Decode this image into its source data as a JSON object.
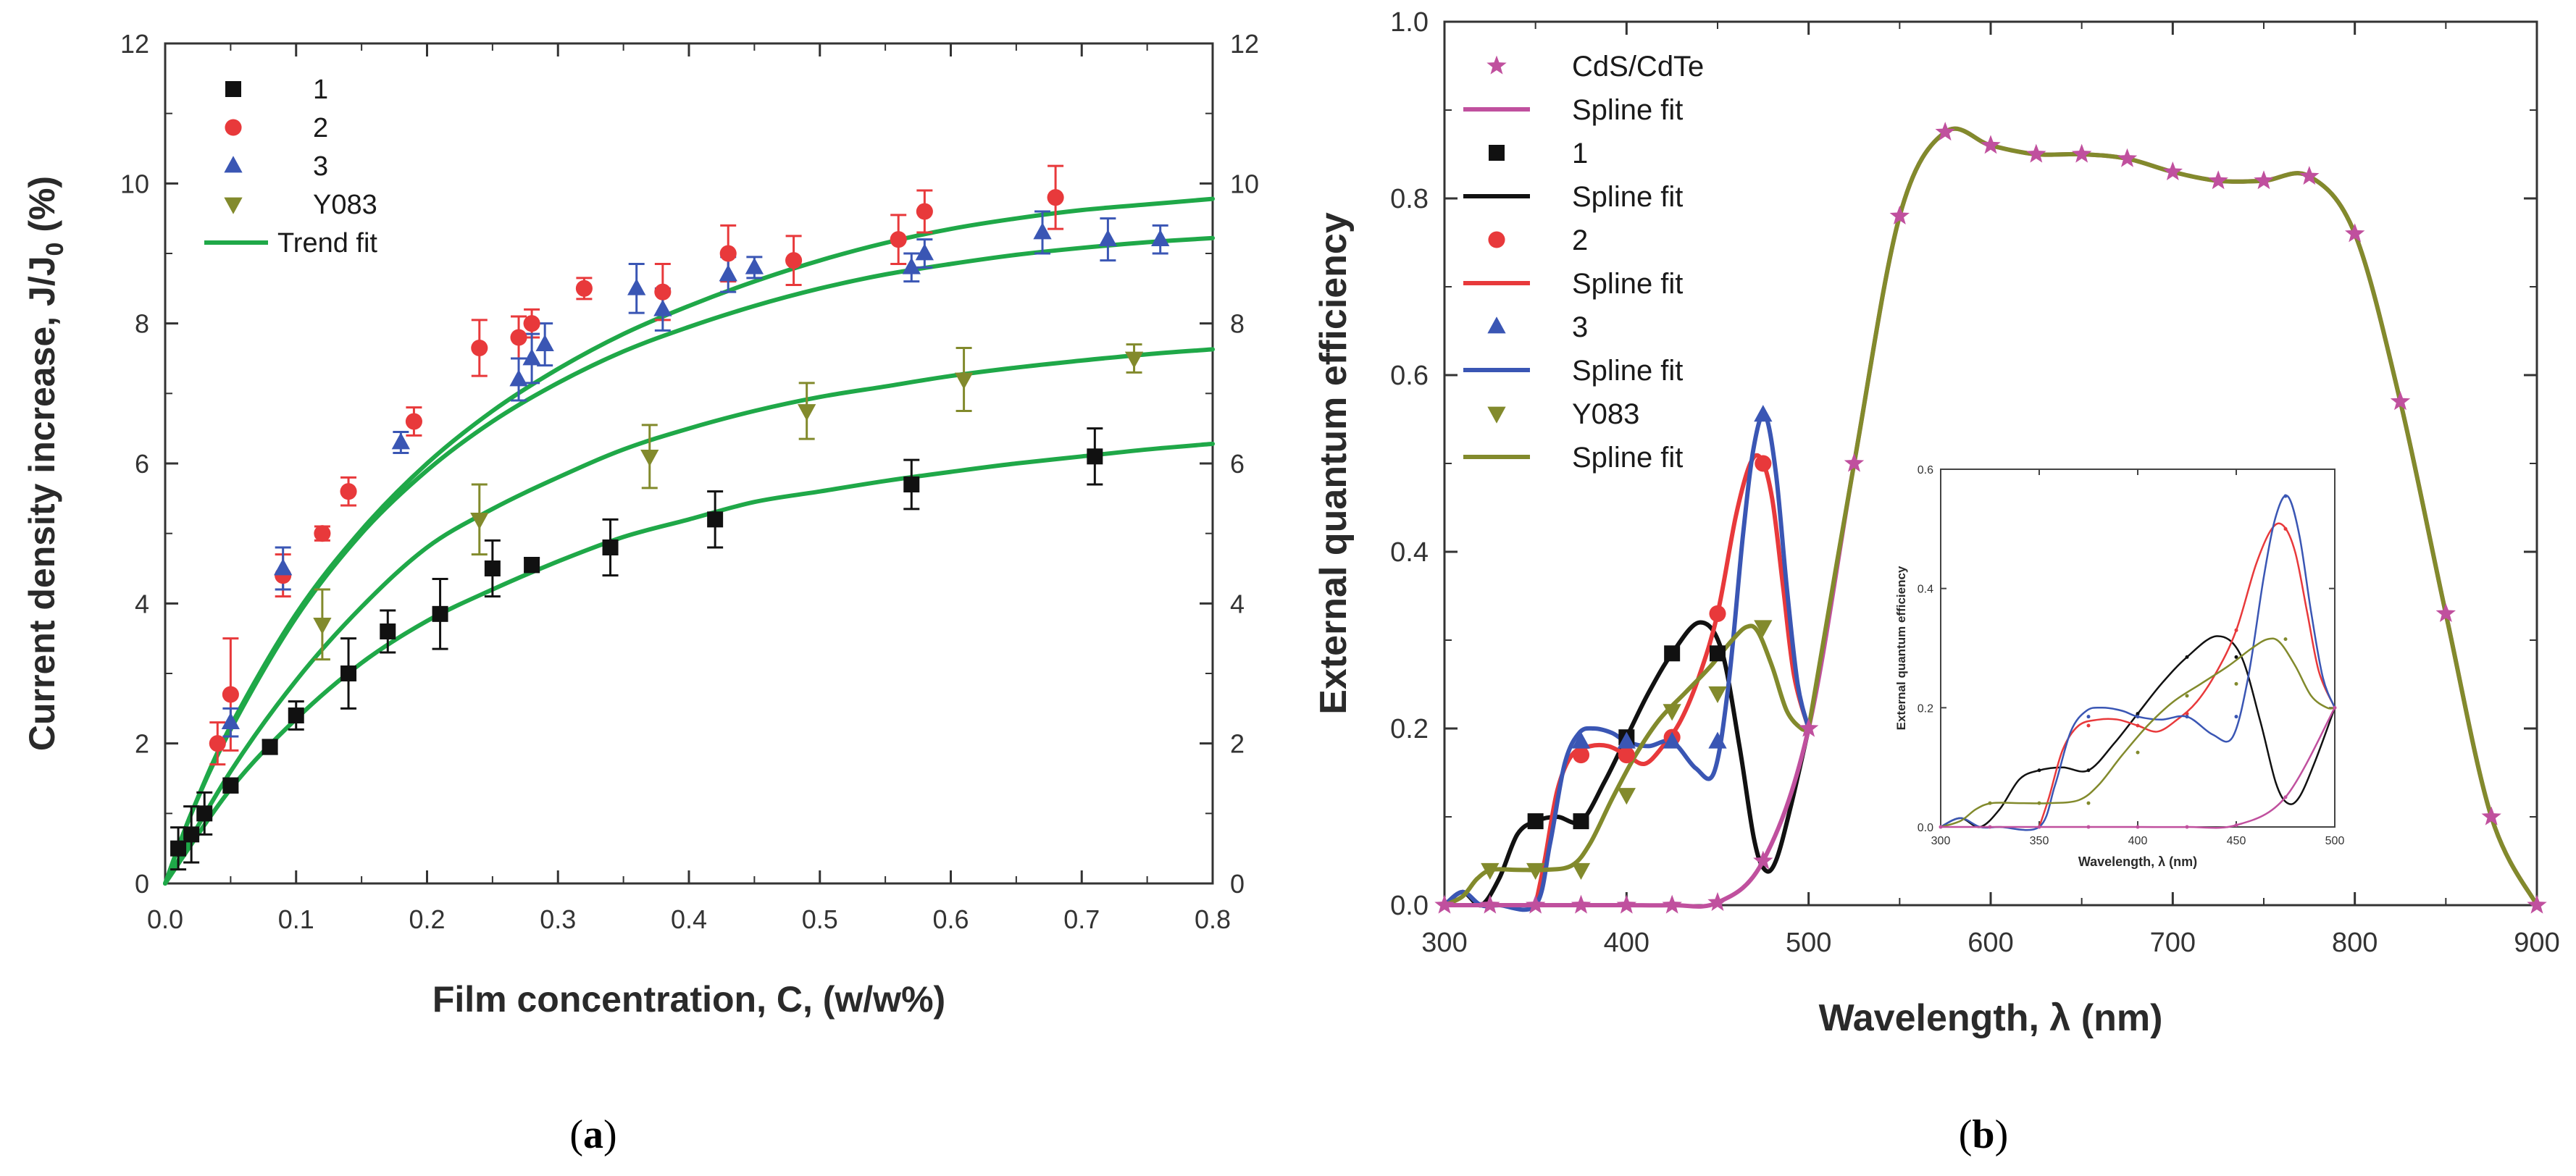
{
  "chart_data": [
    {
      "type": "scatter",
      "panel_label": "(a)",
      "panel_letter": "a",
      "title": "",
      "xlabel": "Film concentration, C, (w/w%)",
      "ylabel": "Current density increase, J/J0 (%)",
      "ylabel_main": "Current density increase, J/J",
      "ylabel_sub": "0",
      "ylabel_tail": " (%)",
      "xlim": [
        0.0,
        0.8
      ],
      "ylim": [
        0,
        12
      ],
      "xticks": [
        0.0,
        0.1,
        0.2,
        0.3,
        0.4,
        0.5,
        0.6,
        0.7,
        0.8
      ],
      "xtick_labels": [
        "0.0",
        "0.1",
        "0.2",
        "0.3",
        "0.4",
        "0.5",
        "0.6",
        "0.7",
        "0.8"
      ],
      "yticks": [
        0,
        2,
        4,
        6,
        8,
        10,
        12
      ],
      "ytick_labels": [
        "0",
        "2",
        "4",
        "6",
        "8",
        "10",
        "12"
      ],
      "right_yticks": [
        0,
        2,
        4,
        6,
        8,
        10,
        12
      ],
      "right_ytick_labels": [
        "0",
        "2",
        "4",
        "6",
        "8",
        "10",
        "12"
      ],
      "legend_position": "top-left",
      "series": [
        {
          "name": "1",
          "marker": "square",
          "color": "#111111",
          "x": [
            0.01,
            0.02,
            0.03,
            0.05,
            0.08,
            0.1,
            0.14,
            0.17,
            0.21,
            0.25,
            0.28,
            0.34,
            0.42,
            0.57,
            0.71
          ],
          "y": [
            0.5,
            0.7,
            1.0,
            1.4,
            1.95,
            2.4,
            3.0,
            3.6,
            3.85,
            4.5,
            4.55,
            4.8,
            5.2,
            5.7,
            6.1
          ],
          "err": [
            0.3,
            0.4,
            0.3,
            0.1,
            0.1,
            0.2,
            0.5,
            0.3,
            0.5,
            0.4,
            0.1,
            0.4,
            0.4,
            0.35,
            0.4
          ]
        },
        {
          "name": "2",
          "marker": "circle",
          "color": "#e8393b",
          "x": [
            0.04,
            0.05,
            0.09,
            0.12,
            0.14,
            0.19,
            0.24,
            0.27,
            0.28,
            0.32,
            0.38,
            0.43,
            0.48,
            0.56,
            0.58,
            0.68
          ],
          "y": [
            2.0,
            2.7,
            4.4,
            5.0,
            5.6,
            6.6,
            7.65,
            7.8,
            8.0,
            8.5,
            8.45,
            9.0,
            8.9,
            9.2,
            9.6,
            9.8
          ],
          "err": [
            0.3,
            0.8,
            0.3,
            0.1,
            0.2,
            0.2,
            0.4,
            0.3,
            0.2,
            0.15,
            0.4,
            0.4,
            0.35,
            0.35,
            0.3,
            0.45
          ]
        },
        {
          "name": "3",
          "marker": "triangle-up",
          "color": "#3a56b4",
          "x": [
            0.05,
            0.09,
            0.18,
            0.27,
            0.28,
            0.29,
            0.36,
            0.38,
            0.43,
            0.45,
            0.57,
            0.58,
            0.67,
            0.72,
            0.76
          ],
          "y": [
            2.3,
            4.5,
            6.3,
            7.2,
            7.5,
            7.7,
            8.5,
            8.2,
            8.7,
            8.8,
            8.8,
            9.0,
            9.3,
            9.2,
            9.2
          ],
          "err": [
            0.2,
            0.3,
            0.15,
            0.3,
            0.35,
            0.3,
            0.35,
            0.3,
            0.25,
            0.15,
            0.2,
            0.2,
            0.3,
            0.3,
            0.2
          ]
        },
        {
          "name": "Y083",
          "marker": "triangle-down",
          "color": "#828a2c",
          "x": [
            0.12,
            0.24,
            0.37,
            0.49,
            0.61,
            0.74
          ],
          "y": [
            3.7,
            5.2,
            6.1,
            6.75,
            7.2,
            7.5
          ],
          "err": [
            0.5,
            0.5,
            0.45,
            0.4,
            0.45,
            0.2
          ]
        }
      ],
      "trend_fit": {
        "name": "Trend fit",
        "color": "#1fa848",
        "curves": [
          {
            "x": [
              0.0,
              0.02,
              0.05,
              0.1,
              0.15,
              0.2,
              0.25,
              0.3,
              0.35,
              0.4,
              0.45,
              0.5,
              0.55,
              0.6,
              0.65,
              0.7,
              0.75,
              0.8
            ],
            "y": [
              0.0,
              1.0,
              2.25,
              3.85,
              5.05,
              6.0,
              6.75,
              7.35,
              7.85,
              8.25,
              8.6,
              8.9,
              9.15,
              9.35,
              9.5,
              9.62,
              9.7,
              9.78
            ]
          },
          {
            "x": [
              0.0,
              0.02,
              0.05,
              0.1,
              0.15,
              0.2,
              0.25,
              0.3,
              0.35,
              0.4,
              0.45,
              0.5,
              0.55,
              0.6,
              0.65,
              0.7,
              0.75,
              0.8
            ],
            "y": [
              0.0,
              1.0,
              2.2,
              3.8,
              5.0,
              5.9,
              6.6,
              7.15,
              7.6,
              7.95,
              8.25,
              8.5,
              8.7,
              8.85,
              8.98,
              9.08,
              9.16,
              9.22
            ]
          },
          {
            "x": [
              0.0,
              0.05,
              0.1,
              0.15,
              0.2,
              0.25,
              0.3,
              0.35,
              0.4,
              0.45,
              0.5,
              0.55,
              0.6,
              0.65,
              0.7,
              0.75,
              0.8
            ],
            "y": [
              0.0,
              1.6,
              2.9,
              3.95,
              4.8,
              5.35,
              5.8,
              6.2,
              6.5,
              6.75,
              6.95,
              7.1,
              7.25,
              7.37,
              7.47,
              7.56,
              7.63
            ]
          },
          {
            "x": [
              0.0,
              0.05,
              0.1,
              0.15,
              0.2,
              0.25,
              0.3,
              0.35,
              0.4,
              0.45,
              0.5,
              0.55,
              0.6,
              0.65,
              0.7,
              0.75,
              0.8
            ],
            "y": [
              0.0,
              1.35,
              2.35,
              3.15,
              3.75,
              4.2,
              4.6,
              4.95,
              5.2,
              5.45,
              5.6,
              5.75,
              5.88,
              6.0,
              6.1,
              6.2,
              6.28
            ]
          }
        ]
      },
      "legend": [
        {
          "label": "1",
          "kind": "marker",
          "marker": "square",
          "color": "#111111"
        },
        {
          "label": "2",
          "kind": "marker",
          "marker": "circle",
          "color": "#e8393b"
        },
        {
          "label": "3",
          "kind": "marker",
          "marker": "triangle-up",
          "color": "#3a56b4"
        },
        {
          "label": "Y083",
          "kind": "marker",
          "marker": "triangle-down",
          "color": "#828a2c"
        },
        {
          "label": "Trend fit",
          "kind": "line",
          "color": "#1fa848"
        }
      ]
    },
    {
      "type": "line",
      "panel_label": "(b)",
      "panel_letter": "b",
      "title": "",
      "xlabel": "Wavelength, λ (nm)",
      "ylabel": "External quantum efficiency",
      "xlim": [
        300,
        900
      ],
      "ylim": [
        0.0,
        1.0
      ],
      "xticks": [
        300,
        400,
        500,
        600,
        700,
        800,
        900
      ],
      "xtick_labels": [
        "300",
        "400",
        "500",
        "600",
        "700",
        "800",
        "900"
      ],
      "yticks": [
        0.0,
        0.2,
        0.4,
        0.6,
        0.8,
        1.0
      ],
      "ytick_labels": [
        "0.0",
        "0.2",
        "0.4",
        "0.6",
        "0.8",
        "1.0"
      ],
      "legend_position": "top-left",
      "series": [
        {
          "name": "CdS/CdTe",
          "fit_name": "Spline fit",
          "marker": "star",
          "color": "#c0509e",
          "x": [
            300,
            325,
            350,
            375,
            400,
            425,
            450,
            475,
            500,
            525,
            550,
            575,
            600,
            625,
            650,
            675,
            700,
            725,
            750,
            775,
            800,
            825,
            850,
            875,
            900
          ],
          "y": [
            0.0,
            0.0,
            0.0,
            0.0,
            0.0,
            0.0,
            0.003,
            0.05,
            0.2,
            0.5,
            0.78,
            0.875,
            0.86,
            0.85,
            0.85,
            0.845,
            0.83,
            0.82,
            0.82,
            0.825,
            0.76,
            0.57,
            0.33,
            0.1,
            0.0
          ],
          "fit_y": [
            0.0,
            0.0,
            0.0,
            0.0,
            0.0,
            0.0,
            0.003,
            0.05,
            0.2,
            0.5,
            0.78,
            0.875,
            0.86,
            0.85,
            0.85,
            0.845,
            0.83,
            0.82,
            0.82,
            0.825,
            0.76,
            0.57,
            0.33,
            0.1,
            0.0
          ]
        },
        {
          "name": "1",
          "fit_name": "Spline fit",
          "marker": "square",
          "color": "#111111",
          "x": [
            350,
            375,
            400,
            425,
            450
          ],
          "y": [
            0.095,
            0.095,
            0.19,
            0.285,
            0.285
          ],
          "fit_x": [
            300,
            310,
            320,
            330,
            340,
            350,
            362,
            375,
            388,
            400,
            412,
            425,
            440,
            452,
            462,
            470,
            476,
            482,
            490,
            500
          ],
          "fit_y": [
            0.0,
            0.015,
            0.0,
            0.03,
            0.08,
            0.095,
            0.1,
            0.095,
            0.14,
            0.19,
            0.24,
            0.285,
            0.32,
            0.29,
            0.18,
            0.075,
            0.04,
            0.05,
            0.11,
            0.2
          ]
        },
        {
          "name": "2",
          "fit_name": "Spline fit",
          "marker": "circle",
          "color": "#e8393b",
          "x": [
            375,
            400,
            425,
            450,
            475
          ],
          "y": [
            0.17,
            0.17,
            0.19,
            0.33,
            0.5
          ],
          "fit_x": [
            350,
            355,
            362,
            370,
            380,
            390,
            400,
            410,
            420,
            430,
            440,
            450,
            460,
            468,
            474,
            480,
            486,
            492,
            500
          ],
          "fit_y": [
            0.0,
            0.05,
            0.13,
            0.17,
            0.18,
            0.18,
            0.17,
            0.16,
            0.18,
            0.21,
            0.26,
            0.33,
            0.44,
            0.5,
            0.505,
            0.46,
            0.36,
            0.26,
            0.2
          ]
        },
        {
          "name": "3",
          "fit_name": "Spline fit",
          "marker": "triangle-up",
          "color": "#3a56b4",
          "x": [
            375,
            400,
            425,
            450,
            475
          ],
          "y": [
            0.185,
            0.185,
            0.185,
            0.185,
            0.555
          ],
          "fit_x": [
            300,
            310,
            320,
            330,
            350,
            358,
            366,
            374,
            382,
            392,
            400,
            412,
            425,
            438,
            448,
            456,
            464,
            470,
            476,
            482,
            488,
            494,
            500
          ],
          "fit_y": [
            0.0,
            0.015,
            0.0,
            0.0,
            0.0,
            0.07,
            0.16,
            0.195,
            0.2,
            0.195,
            0.185,
            0.18,
            0.185,
            0.155,
            0.15,
            0.25,
            0.42,
            0.52,
            0.555,
            0.49,
            0.36,
            0.25,
            0.2
          ]
        },
        {
          "name": "Y083",
          "fit_name": "Spline fit",
          "marker": "triangle-down",
          "color": "#828a2c",
          "x": [
            325,
            350,
            375,
            400,
            425,
            450,
            475
          ],
          "y": [
            0.04,
            0.04,
            0.04,
            0.125,
            0.22,
            0.24,
            0.315
          ],
          "fit_x": [
            300,
            310,
            318,
            326,
            340,
            355,
            370,
            380,
            392,
            405,
            418,
            432,
            446,
            458,
            466,
            472,
            480,
            488,
            496,
            500
          ],
          "fit_y": [
            0.0,
            0.01,
            0.03,
            0.04,
            0.04,
            0.04,
            0.045,
            0.07,
            0.12,
            0.17,
            0.21,
            0.24,
            0.27,
            0.3,
            0.315,
            0.31,
            0.27,
            0.22,
            0.2,
            0.2
          ]
        }
      ],
      "legend": [
        {
          "label": "CdS/CdTe",
          "kind": "marker",
          "marker": "star",
          "color": "#c0509e"
        },
        {
          "label": "Spline fit",
          "kind": "line",
          "color": "#c0509e"
        },
        {
          "label": "1",
          "kind": "marker",
          "marker": "square",
          "color": "#111111"
        },
        {
          "label": "Spline fit",
          "kind": "line",
          "color": "#111111"
        },
        {
          "label": "2",
          "kind": "marker",
          "marker": "circle",
          "color": "#e8393b"
        },
        {
          "label": "Spline fit",
          "kind": "line",
          "color": "#e8393b"
        },
        {
          "label": "3",
          "kind": "marker",
          "marker": "triangle-up",
          "color": "#3a56b4"
        },
        {
          "label": "Spline fit",
          "kind": "line",
          "color": "#3a56b4"
        },
        {
          "label": "Y083",
          "kind": "marker",
          "marker": "triangle-down",
          "color": "#828a2c"
        },
        {
          "label": "Spline fit",
          "kind": "line",
          "color": "#828a2c"
        }
      ],
      "inset": {
        "xlabel": "Wavelength, λ (nm)",
        "ylabel": "External quantum efficiency",
        "xlim": [
          300,
          500
        ],
        "ylim": [
          0.0,
          0.6
        ],
        "xticks": [
          300,
          350,
          400,
          450,
          500
        ],
        "xtick_labels": [
          "300",
          "350",
          "400",
          "450",
          "500"
        ],
        "yticks": [
          0.0,
          0.2,
          0.4,
          0.6
        ],
        "ytick_labels": [
          "0.0",
          "0.2",
          "0.4",
          "0.6"
        ]
      }
    }
  ]
}
